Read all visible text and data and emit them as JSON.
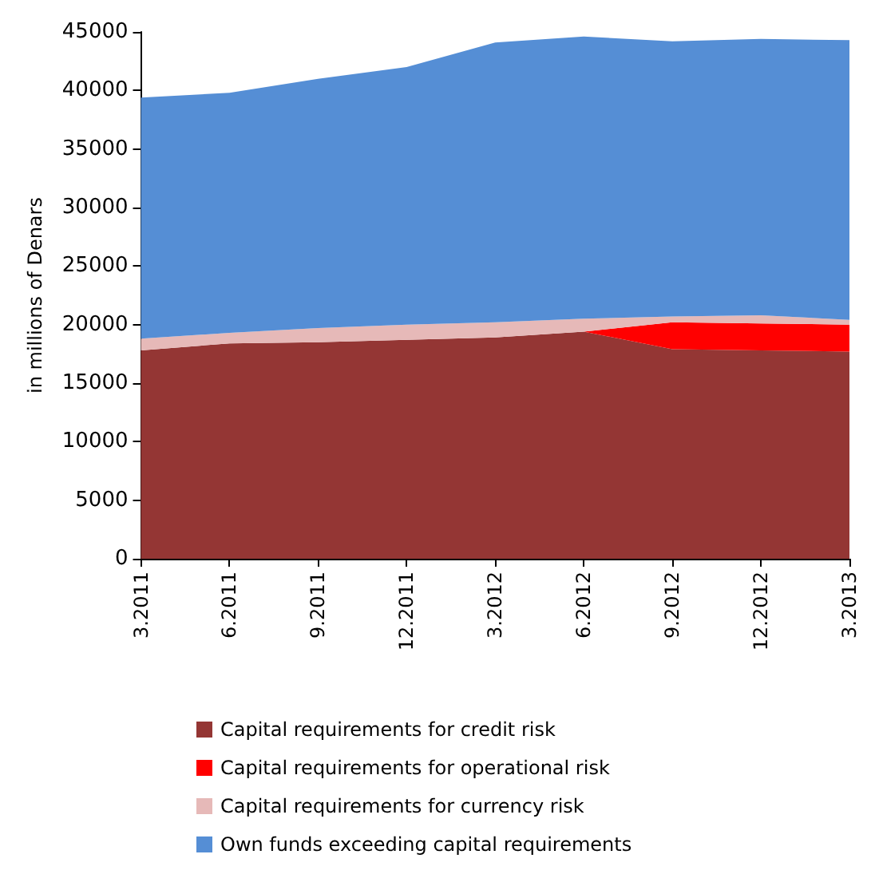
{
  "chart_data": {
    "type": "area",
    "stacked": true,
    "ylabel": "in millions of Denars",
    "categories": [
      "3.2011",
      "6.2011",
      "9.2011",
      "12.2011",
      "3.2012",
      "6.2012",
      "9.2012",
      "12.2012",
      "3.2013"
    ],
    "series": [
      {
        "name": "Capital requirements for credit risk",
        "color": "#943634",
        "values": [
          17800,
          18400,
          18500,
          18700,
          18900,
          19400,
          17900,
          17800,
          17700
        ]
      },
      {
        "name": "Capital requirements for operational risk",
        "color": "#ff0000",
        "values": [
          0,
          0,
          0,
          0,
          0,
          0,
          2300,
          2300,
          2300
        ]
      },
      {
        "name": "Capital requirements for currency risk",
        "color": "#e6b9b8",
        "values": [
          1000,
          900,
          1200,
          1300,
          1300,
          1100,
          500,
          700,
          400
        ]
      },
      {
        "name": "Own funds exceeding capital requirements",
        "color": "#558ed5",
        "values": [
          20600,
          20500,
          21300,
          22000,
          23900,
          24100,
          23500,
          23600,
          23900
        ]
      }
    ],
    "ylim": [
      0,
      45000
    ],
    "yticks": [
      0,
      5000,
      10000,
      15000,
      20000,
      25000,
      30000,
      35000,
      40000,
      45000
    ],
    "grid": false,
    "legend": "bottom"
  }
}
